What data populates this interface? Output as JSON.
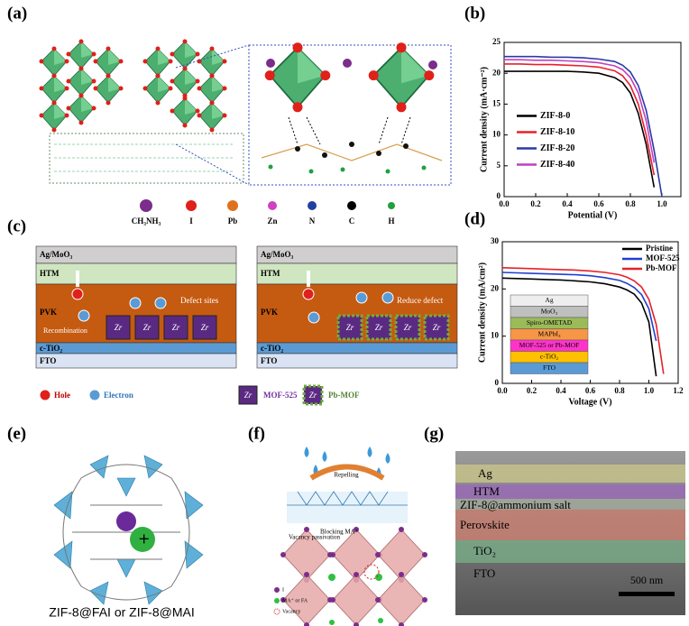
{
  "panel_labels": [
    "(a)",
    "(b)",
    "(c)",
    "(d)",
    "(e)",
    "(f)",
    "(g)"
  ],
  "panel_a": {
    "legend": [
      "CH₃NH₃",
      "I",
      "Pb",
      "Zn",
      "N",
      "C",
      "H"
    ]
  },
  "chart_data": [
    {
      "type": "line",
      "x": [
        0,
        0.1,
        0.2,
        0.3,
        0.4,
        0.5,
        0.6,
        0.7,
        0.75,
        0.8,
        0.85,
        0.9,
        0.95,
        1.0
      ],
      "series": [
        {
          "name": "ZIF-8-0",
          "color": "#000000",
          "values": [
            20.3,
            20.3,
            20.3,
            20.3,
            20.3,
            20.2,
            20.0,
            19.3,
            18.5,
            16.8,
            13.5,
            8.5,
            1.5,
            null
          ]
        },
        {
          "name": "ZIF-8-10",
          "color": "#e8202a",
          "values": [
            21.5,
            21.5,
            21.4,
            21.4,
            21.3,
            21.2,
            21.0,
            20.4,
            19.6,
            18.0,
            15.0,
            10.0,
            3.5,
            null
          ]
        },
        {
          "name": "ZIF-8-20",
          "color": "#2a3aa8",
          "values": [
            22.7,
            22.7,
            22.7,
            22.6,
            22.6,
            22.5,
            22.3,
            21.9,
            21.3,
            20.2,
            18.0,
            14.0,
            7.5,
            0.0
          ]
        },
        {
          "name": "ZIF-8-40",
          "color": "#c040c0",
          "values": [
            22.2,
            22.2,
            22.1,
            22.1,
            22.0,
            21.9,
            21.7,
            21.2,
            20.6,
            19.3,
            16.8,
            12.3,
            5.5,
            null
          ]
        }
      ],
      "x_label": "Potential (V)",
      "y_label": "Current density (mA·cm⁻²)",
      "xlim": [
        0,
        1.12
      ],
      "ylim": [
        0,
        25
      ],
      "xticks": [
        {
          "value": 0,
          "label": "0.0"
        },
        0.2,
        0.4,
        0.6,
        0.8,
        {
          "value": 1,
          "label": "1.0"
        }
      ],
      "yticks": [
        0,
        5,
        10,
        15,
        20,
        25
      ],
      "legend": "center left"
    },
    {
      "type": "line",
      "x": [
        0,
        0.1,
        0.2,
        0.3,
        0.4,
        0.5,
        0.6,
        0.7,
        0.8,
        0.85,
        0.9,
        0.95,
        1.0,
        1.05,
        1.1
      ],
      "series": [
        {
          "name": "Pristine",
          "color": "#000000",
          "values": [
            22.3,
            22.2,
            22.1,
            22.0,
            21.9,
            21.7,
            21.5,
            21.1,
            20.4,
            19.8,
            18.9,
            17.0,
            13.0,
            1.5,
            null
          ]
        },
        {
          "name": "MOF-525",
          "color": "#1f3fd0",
          "values": [
            23.5,
            23.4,
            23.3,
            23.2,
            23.1,
            23.0,
            22.8,
            22.4,
            21.8,
            21.2,
            20.3,
            18.8,
            15.8,
            9.0,
            null
          ]
        },
        {
          "name": "Pb-MOF",
          "color": "#e8202a",
          "values": [
            24.5,
            24.4,
            24.3,
            24.2,
            24.1,
            24.0,
            23.8,
            23.5,
            23.0,
            22.5,
            21.7,
            20.4,
            17.8,
            12.5,
            2.0
          ]
        }
      ],
      "x_label": "Voltage (V)",
      "y_label": "Current density (mA/cm²)",
      "xlim": [
        0,
        1.2
      ],
      "ylim": [
        0,
        30
      ],
      "xticks": [
        {
          "value": 0,
          "label": "0.0"
        },
        0.2,
        0.4,
        0.6,
        0.8,
        {
          "value": 1,
          "label": "1.0"
        },
        1.2
      ],
      "yticks": [
        0,
        10,
        20,
        30
      ],
      "legend": "upper right"
    }
  ],
  "panel_c": {
    "layers": [
      "Ag/MoO₃",
      "HTM",
      "PVK",
      "c-TiO₂",
      "FTO"
    ],
    "defect": "Defect sites",
    "recombination": "Recombination",
    "reduce": "Reduce defect",
    "zr": "Zr",
    "legend": [
      "Hole",
      "Electron",
      "MOF-525",
      "Pb-MOF"
    ]
  },
  "panel_d_inset": [
    "Ag",
    "MoO₃",
    "Spiro-OMETAD",
    "MAPbI₃",
    "MOF-525 or Pb-MOF",
    "c-TiO₂",
    "FTO"
  ],
  "panel_e": {
    "caption": "ZIF-8@FAI or ZIF-8@MAI"
  },
  "panel_f": {
    "repelling": "Repelling",
    "vacancy_passivation": "Vacancy passivation",
    "blocking": "Blocking MA⁺",
    "legend": [
      "I",
      "MA⁺ or FA",
      "Vacancy"
    ]
  },
  "panel_g": {
    "layers": [
      "Ag",
      "HTM",
      "ZIF-8@ammonium salt",
      "Perovskite",
      "TiO₂",
      "FTO"
    ],
    "scale_bar": "500 nm"
  }
}
